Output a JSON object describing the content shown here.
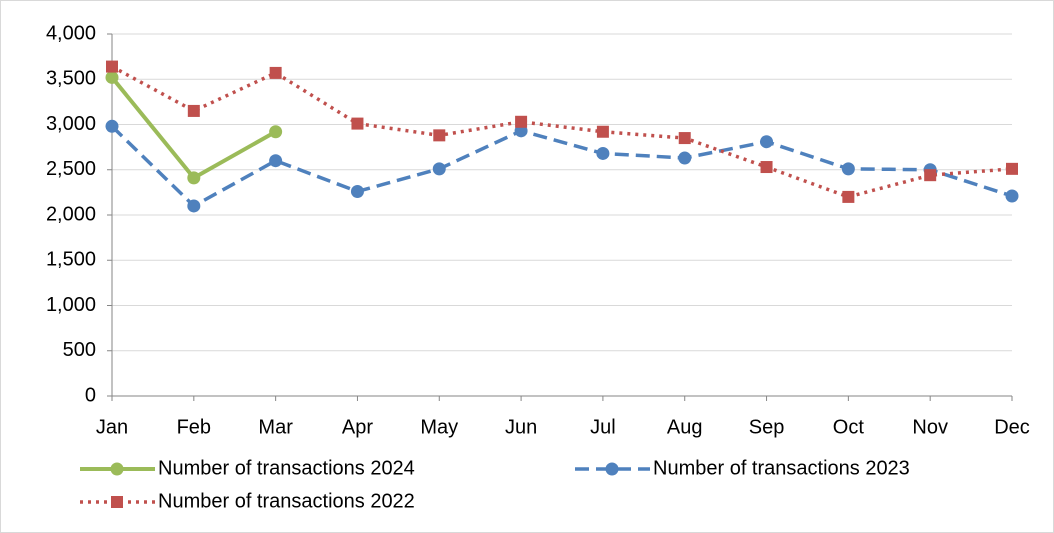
{
  "chart_data": {
    "type": "line",
    "categories": [
      "Jan",
      "Feb",
      "Mar",
      "Apr",
      "May",
      "Jun",
      "Jul",
      "Aug",
      "Sep",
      "Oct",
      "Nov",
      "Dec"
    ],
    "series": [
      {
        "name": "Number of transactions 2024",
        "color": "#9bbb59",
        "line_style": "solid",
        "marker": "circle",
        "values": [
          3520,
          2410,
          2920,
          null,
          null,
          null,
          null,
          null,
          null,
          null,
          null,
          null
        ]
      },
      {
        "name": "Number of transactions 2023",
        "color": "#4f81bd",
        "line_style": "dashed",
        "marker": "circle",
        "values": [
          2980,
          2100,
          2600,
          2260,
          2510,
          2930,
          2680,
          2630,
          2810,
          2510,
          2500,
          2210
        ]
      },
      {
        "name": "Number of transactions 2022",
        "color": "#c0504d",
        "line_style": "dotted",
        "marker": "square",
        "values": [
          3640,
          3150,
          3570,
          3010,
          2880,
          3030,
          2920,
          2850,
          2530,
          2200,
          2440,
          2510
        ]
      }
    ],
    "ylim": [
      0,
      4000
    ],
    "yticks": [
      0,
      500,
      {
        "value": 1000,
        "label": "1,000"
      },
      {
        "value": 1500,
        "label": "1,500"
      },
      {
        "value": 2000,
        "label": "2,000"
      },
      {
        "value": 2500,
        "label": "2,500"
      },
      {
        "value": 3000,
        "label": "3,000"
      },
      {
        "value": 3500,
        "label": "3,500"
      },
      {
        "value": 4000,
        "label": "4,000"
      }
    ],
    "grid": true,
    "legend": "bottom"
  }
}
